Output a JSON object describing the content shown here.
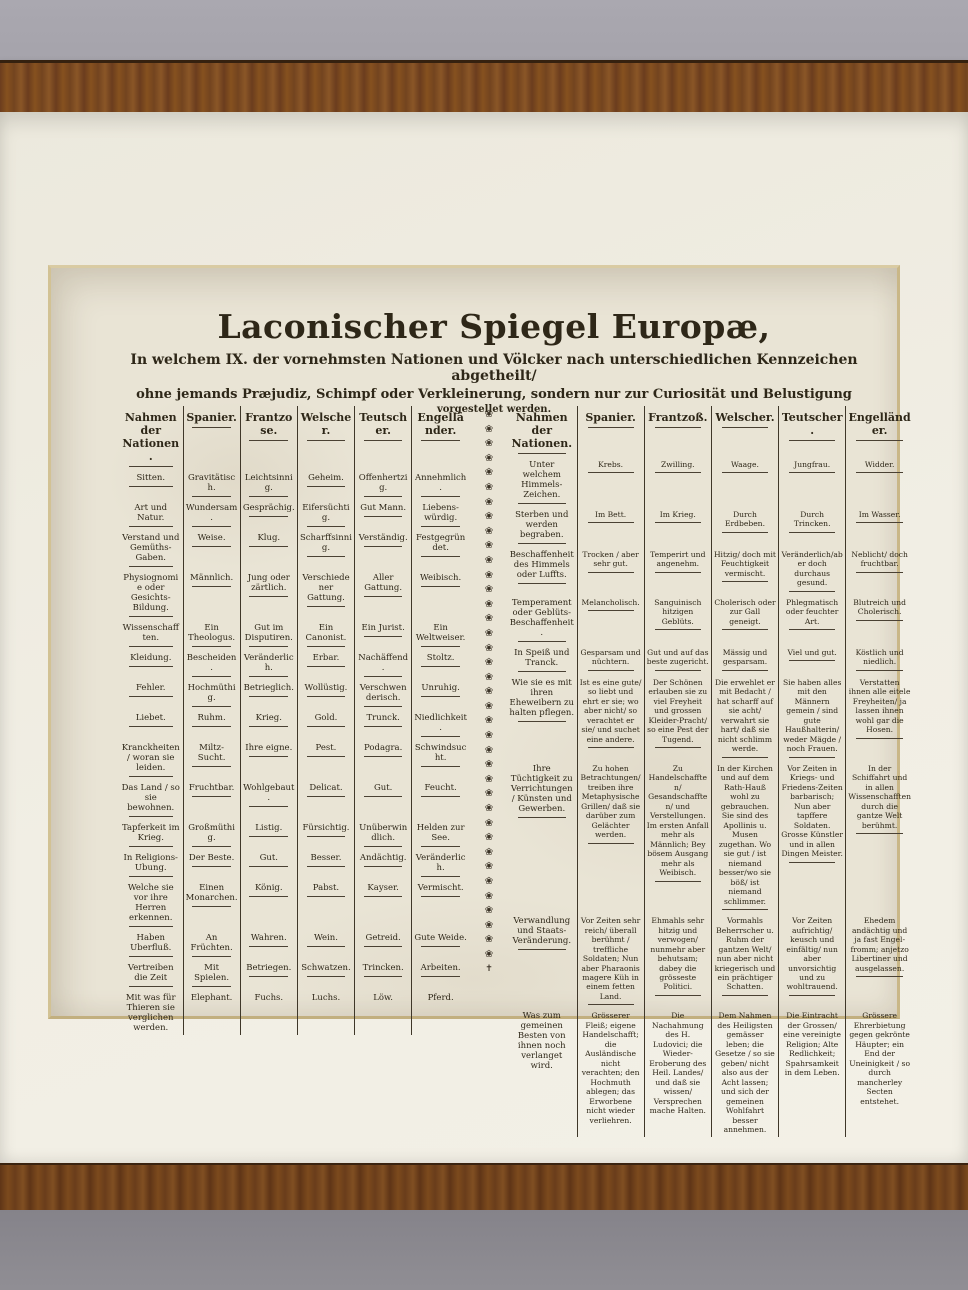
{
  "print": {
    "title": "Laconischer Spiegel Europæ,",
    "subtitle_line1": "In welchem IX. der vornehmsten Nationen und Völcker nach unterschiedlichen Kennzeichen abgetheilt/",
    "subtitle_line2": "ohne jemands Præjudiz, Schimpf oder Verkleinerung, sondern nur zur Curiosität und Belustigung",
    "subtitle_line3": "vorgestellet werden."
  },
  "left_table": {
    "headers": [
      "Nahmen der Nationen.",
      "Spanier.",
      "Frantzose.",
      "Welscher.",
      "Teutscher.",
      "Engelländer."
    ],
    "rows": [
      {
        "label": "Sitten.",
        "cells": [
          "Gravitätisch.",
          "Leichtsinnig.",
          "Geheim.",
          "Offenhertzig.",
          "Annehmlich."
        ]
      },
      {
        "label": "Art und Natur.",
        "cells": [
          "Wundersam.",
          "Gesprächig.",
          "Eifersüchtig.",
          "Gut Mann.",
          "Liebens-würdig."
        ]
      },
      {
        "label": "Verstand und Gemüths-Gaben.",
        "cells": [
          "Weise.",
          "Klug.",
          "Scharffsinnig.",
          "Verständig.",
          "Festgegründet."
        ]
      },
      {
        "label": "Physiognomie oder Gesichts-Bildung.",
        "cells": [
          "Männlich.",
          "Jung oder zärtlich.",
          "Verschiedener Gattung.",
          "Aller Gattung.",
          "Weibisch."
        ]
      },
      {
        "label": "Wissenschafften.",
        "cells": [
          "Ein Theologus.",
          "Gut im Disputiren.",
          "Ein Canonist.",
          "Ein Jurist.",
          "Ein Weltweiser."
        ]
      },
      {
        "label": "Kleidung.",
        "cells": [
          "Bescheiden.",
          "Veränderlich.",
          "Erbar.",
          "Nachäffend.",
          "Stoltz."
        ]
      },
      {
        "label": "Fehler.",
        "cells": [
          "Hochmüthig.",
          "Betrieglich.",
          "Wollüstig.",
          "Verschwenderisch.",
          "Unruhig."
        ]
      },
      {
        "label": "Liebet.",
        "cells": [
          "Ruhm.",
          "Krieg.",
          "Gold.",
          "Trunck.",
          "Niedlichkeit."
        ]
      },
      {
        "label": "Kranckheiten/ woran sie leiden.",
        "cells": [
          "Miltz-Sucht.",
          "Ihre eigne.",
          "Pest.",
          "Podagra.",
          "Schwindsucht."
        ]
      },
      {
        "label": "Das Land / so sie bewohnen.",
        "cells": [
          "Fruchtbar.",
          "Wohlgebaut.",
          "Delicat.",
          "Gut.",
          "Feucht."
        ]
      },
      {
        "label": "Tapferkeit im Krieg.",
        "cells": [
          "Großmüthig.",
          "Listig.",
          "Fürsichtig.",
          "Unüberwindlich.",
          "Helden zur See."
        ]
      },
      {
        "label": "In Religions-Ubung.",
        "cells": [
          "Der Beste.",
          "Gut.",
          "Besser.",
          "Andächtig.",
          "Veränderlich."
        ]
      },
      {
        "label": "Welche sie vor ihre Herren erkennen.",
        "cells": [
          "Einen Monarchen.",
          "König.",
          "Pabst.",
          "Kayser.",
          "Vermischt."
        ]
      },
      {
        "label": "Haben Uberfluß.",
        "cells": [
          "An Früchten.",
          "Wahren.",
          "Wein.",
          "Getreid.",
          "Gute Weide."
        ]
      },
      {
        "label": "Vertreiben die Zeit",
        "cells": [
          "Mit Spielen.",
          "Betriegen.",
          "Schwatzen.",
          "Trincken.",
          "Arbeiten."
        ]
      },
      {
        "label": "Mit was für Thieren sie verglichen werden.",
        "cells": [
          "Elephant.",
          "Fuchs.",
          "Luchs.",
          "Löw.",
          "Pferd."
        ]
      }
    ]
  },
  "right_table": {
    "headers": [
      "Nahmen der Nationen.",
      "Spanier.",
      "Frantzoß.",
      "Welscher.",
      "Teutscher.",
      "Engelländer."
    ],
    "rows": [
      {
        "label": "Unter welchem Himmels-Zeichen.",
        "cells": [
          "Krebs.",
          "Zwilling.",
          "Waage.",
          "Jungfrau.",
          "Widder."
        ]
      },
      {
        "label": "Sterben und werden begraben.",
        "cells": [
          "Im Bett.",
          "Im Krieg.",
          "Durch Erdbeben.",
          "Durch Trincken.",
          "Im Wasser."
        ]
      },
      {
        "label": "Beschaffenheit des Himmels oder Luffts.",
        "cells": [
          "Trocken / aber sehr gut.",
          "Temperirt und angenehm.",
          "Hitzig/ doch mit Feuchtigkeit vermischt.",
          "Veränderlich/aber doch durchaus gesund.",
          "Neblicht/ doch fruchtbar."
        ]
      },
      {
        "label": "Temperament oder Geblüts-Beschaffenheit.",
        "cells": [
          "Melancholisch.",
          "Sanguinisch hitzigen Geblüts.",
          "Cholerisch oder zur Gall geneigt.",
          "Phlegmatisch oder feuchter Art.",
          "Blutreich und Cholerisch."
        ]
      },
      {
        "label": "In Speiß und Tranck.",
        "cells": [
          "Gesparsam und nüchtern.",
          "Gut und auf das beste zugericht.",
          "Mässig und gesparsam.",
          "Viel und gut.",
          "Köstlich und niedlich."
        ]
      },
      {
        "label": "Wie sie es mit ihren Eheweibern zu halten pflegen.",
        "cells": [
          "Ist es eine gute/ so liebt und ehrt er sie; wo aber nicht/ so verachtet er sie/ und suchet eine andere.",
          "Der Schönen erlauben sie zu viel Freyheit und grossen Kleider-Pracht/ so eine Pest der Tugend.",
          "Die erwehlet er mit Bedacht / hat scharff auf sie acht/ verwahrt sie hart/ daß sie nicht schlimm werde.",
          "Sie haben alles mit den Männern gemein / sind gute Haußhalterin/ weder Mägde / noch Frauen.",
          "Verstatten ihnen alle eitele Freyheiten/ ja lassen ihnen wohl gar die Hosen."
        ]
      },
      {
        "label": "Ihre Tüchtigkeit zu Verrichtungen / Künsten und Gewerben.",
        "cells": [
          "Zu hohen Betrachtungen/ treiben ihre Metaphysische Grillen/ daß sie darüber zum Gelächter werden.",
          "Zu Handelschafften/ Gesandschafften/ und Verstellungen. Im ersten Anfall mehr als Männlich; Bey bösem Ausgang mehr als Weibisch.",
          "In der Kirchen und auf dem Rath-Hauß wohl zu gebrauchen. Sie sind des Apollinis u. Musen zugethan. Wo sie gut / ist niemand besser/wo sie böß/ ist niemand schlimmer.",
          "Vor Zeiten in Kriegs- und Friedens-Zeiten barbarisch; Nun aber tapffere Soldaten. Grosse Künstler und in allen Dingen Meister.",
          "In der Schiffahrt und in allen Wissenschafften durch die gantze Welt berühmt."
        ]
      },
      {
        "label": "Verwandlung und Staats-Veränderung.",
        "cells": [
          "Vor Zeiten sehr reich/ überall berühmt / treffliche Soldaten; Nun aber Pharaonis magere Küh in einem fetten Land.",
          "Ehmahls sehr hitzig und verwogen/ nunmehr aber behutsam; dabey die grösseste Politici.",
          "Vormahls Beherrscher u. Ruhm der gantzen Welt/ nun aber nicht kriegerisch und ein prächtiger Schatten.",
          "Vor Zeiten aufrichtig/ keusch und einfältig/ nun aber unvorsichtig und zu wohltrauend.",
          "Ehedem andächtig und ja fast Engel-fromm; anjetzo Libertiner und ausgelassen."
        ]
      },
      {
        "label": "Was zum gemeinen Besten von ihnen noch verlanget wird.",
        "cells": [
          "Grösserer Fleiß; eigene Handelschafft; die Ausländische nicht verachten; den Hochmuth ablegen; das Erworbene nicht wieder verliehren.",
          "Die Nachahmung des H. Ludovici; die Wieder-Eroberung des Heil. Landes/ und daß sie wissen/ Versprechen mache Halten.",
          "Dem Nahmen des Heiligsten gemässer leben; die Gesetze / so sie geben/ nicht also aus der Acht lassen; und sich der gemeinen Wohlfahrt besser annehmen.",
          "Die Eintracht der Grossen/ eine vereinigte Religion; Alte Redlichkeit; Spahrsamkeit in dem Leben.",
          "Grössere Ehrerbietung gegen gekrönte Häupter; ein End der Uneinigkeit / so durch mancherley Secten entstehet."
        ]
      }
    ]
  },
  "ornament": {
    "glyph": "❀",
    "count": 38,
    "end_glyph": "✝"
  },
  "colors": {
    "wall": "#a8a6ae",
    "frame_wood": "#7a4a24",
    "mat": "#f0ede3",
    "mat_bevel": "#c9b787",
    "paper": "#e9e4d5",
    "ink": "#2e2718",
    "floor": "#8a888d"
  }
}
